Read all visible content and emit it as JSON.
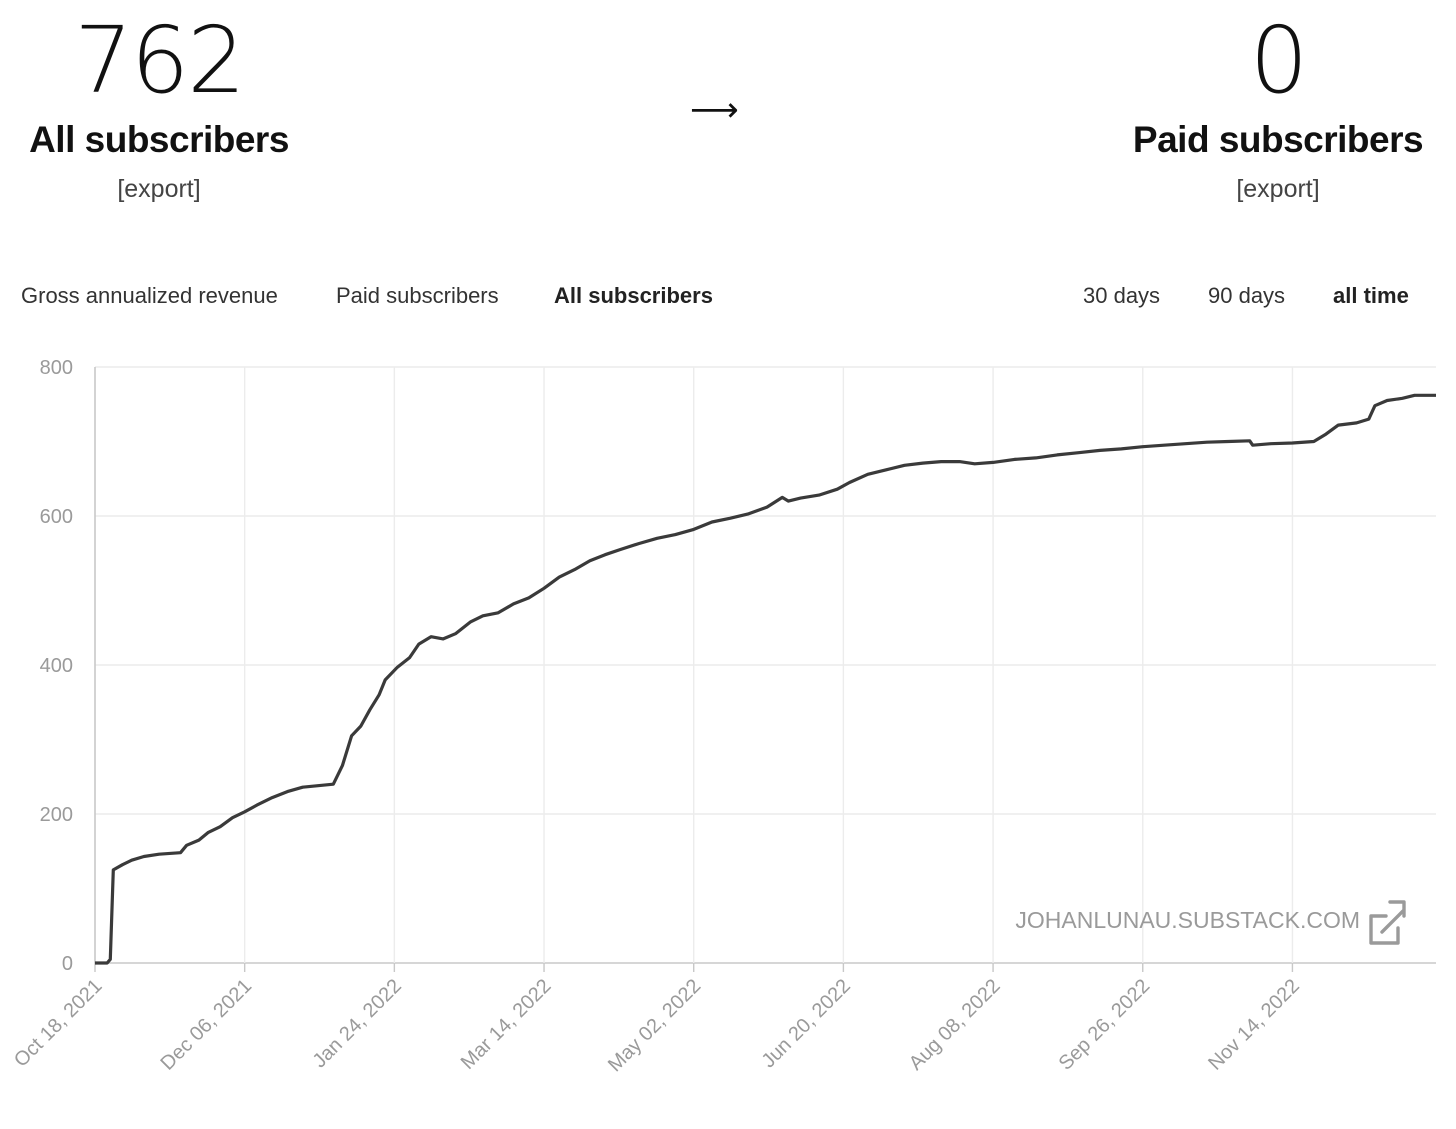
{
  "stats": {
    "all": {
      "value": "762",
      "label": "All subscribers",
      "export": "[export]"
    },
    "arrow": "⟶",
    "paid": {
      "value": "0",
      "label": "Paid subscribers",
      "export": "[export]"
    }
  },
  "metric_tabs": [
    {
      "label": "Gross annualized revenue",
      "active": false
    },
    {
      "label": "Paid subscribers",
      "active": false
    },
    {
      "label": "All subscribers",
      "active": true
    }
  ],
  "range_tabs": [
    {
      "label": "30 days",
      "active": false
    },
    {
      "label": "90 days",
      "active": false
    },
    {
      "label": "all time",
      "active": true
    }
  ],
  "watermark": "JOHANLUNAU.SUBSTACK.COM",
  "colors": {
    "line": "#3a3a3a",
    "grid": "#ececec",
    "axis_text": "#9a9a9a"
  },
  "chart_data": {
    "type": "line",
    "title": "",
    "xlabel": "",
    "ylabel": "",
    "ylim": [
      0,
      800
    ],
    "yticks": [
      "0",
      "200",
      "400",
      "600",
      "800"
    ],
    "xticks": [
      "Oct 18, 2021",
      "Dec 06, 2021",
      "Jan 24, 2022",
      "Mar 14, 2022",
      "May 02, 2022",
      "Jun 20, 2022",
      "Aug 08, 2022",
      "Sep 26, 2022",
      "Nov 14, 2022"
    ],
    "xlim": [
      "2021-10-18",
      "2022-12-31"
    ],
    "grid": true,
    "series": [
      {
        "points": [
          [
            "2021-10-18",
            0
          ],
          [
            "2021-10-22",
            0
          ],
          [
            "2021-10-23",
            5
          ],
          [
            "2021-10-24",
            125
          ],
          [
            "2021-10-27",
            132
          ],
          [
            "2021-10-30",
            138
          ],
          [
            "2021-11-03",
            143
          ],
          [
            "2021-11-08",
            146
          ],
          [
            "2021-11-15",
            148
          ],
          [
            "2021-11-17",
            158
          ],
          [
            "2021-11-21",
            165
          ],
          [
            "2021-11-24",
            175
          ],
          [
            "2021-11-28",
            183
          ],
          [
            "2021-12-02",
            195
          ],
          [
            "2021-12-06",
            203
          ],
          [
            "2021-12-10",
            212
          ],
          [
            "2021-12-15",
            222
          ],
          [
            "2021-12-20",
            230
          ],
          [
            "2021-12-25",
            236
          ],
          [
            "2021-12-30",
            238
          ],
          [
            "2022-01-04",
            240
          ],
          [
            "2022-01-07",
            265
          ],
          [
            "2022-01-10",
            305
          ],
          [
            "2022-01-13",
            318
          ],
          [
            "2022-01-16",
            340
          ],
          [
            "2022-01-19",
            360
          ],
          [
            "2022-01-21",
            380
          ],
          [
            "2022-01-25",
            397
          ],
          [
            "2022-01-29",
            410
          ],
          [
            "2022-02-01",
            428
          ],
          [
            "2022-02-05",
            438
          ],
          [
            "2022-02-09",
            435
          ],
          [
            "2022-02-13",
            442
          ],
          [
            "2022-02-18",
            458
          ],
          [
            "2022-02-22",
            466
          ],
          [
            "2022-02-27",
            470
          ],
          [
            "2022-03-04",
            482
          ],
          [
            "2022-03-09",
            490
          ],
          [
            "2022-03-14",
            503
          ],
          [
            "2022-03-19",
            518
          ],
          [
            "2022-03-24",
            528
          ],
          [
            "2022-03-29",
            540
          ],
          [
            "2022-04-03",
            548
          ],
          [
            "2022-04-08",
            555
          ],
          [
            "2022-04-14",
            563
          ],
          [
            "2022-04-20",
            570
          ],
          [
            "2022-04-26",
            575
          ],
          [
            "2022-05-02",
            582
          ],
          [
            "2022-05-08",
            592
          ],
          [
            "2022-05-14",
            597
          ],
          [
            "2022-05-20",
            603
          ],
          [
            "2022-05-26",
            612
          ],
          [
            "2022-05-31",
            625
          ],
          [
            "2022-06-02",
            620
          ],
          [
            "2022-06-06",
            624
          ],
          [
            "2022-06-12",
            628
          ],
          [
            "2022-06-18",
            636
          ],
          [
            "2022-06-22",
            645
          ],
          [
            "2022-06-28",
            656
          ],
          [
            "2022-07-04",
            662
          ],
          [
            "2022-07-10",
            668
          ],
          [
            "2022-07-16",
            671
          ],
          [
            "2022-07-22",
            673
          ],
          [
            "2022-07-28",
            673
          ],
          [
            "2022-08-02",
            670
          ],
          [
            "2022-08-08",
            672
          ],
          [
            "2022-08-15",
            676
          ],
          [
            "2022-08-22",
            678
          ],
          [
            "2022-08-29",
            682
          ],
          [
            "2022-09-05",
            685
          ],
          [
            "2022-09-12",
            688
          ],
          [
            "2022-09-19",
            690
          ],
          [
            "2022-09-26",
            693
          ],
          [
            "2022-10-03",
            695
          ],
          [
            "2022-10-10",
            697
          ],
          [
            "2022-10-17",
            699
          ],
          [
            "2022-10-24",
            700
          ],
          [
            "2022-10-31",
            701
          ],
          [
            "2022-11-01",
            695
          ],
          [
            "2022-11-07",
            697
          ],
          [
            "2022-11-14",
            698
          ],
          [
            "2022-11-21",
            700
          ],
          [
            "2022-11-25",
            710
          ],
          [
            "2022-11-29",
            722
          ],
          [
            "2022-12-05",
            725
          ],
          [
            "2022-12-09",
            730
          ],
          [
            "2022-12-11",
            748
          ],
          [
            "2022-12-15",
            755
          ],
          [
            "2022-12-20",
            758
          ],
          [
            "2022-12-24",
            762
          ],
          [
            "2022-12-31",
            762
          ]
        ]
      }
    ]
  }
}
